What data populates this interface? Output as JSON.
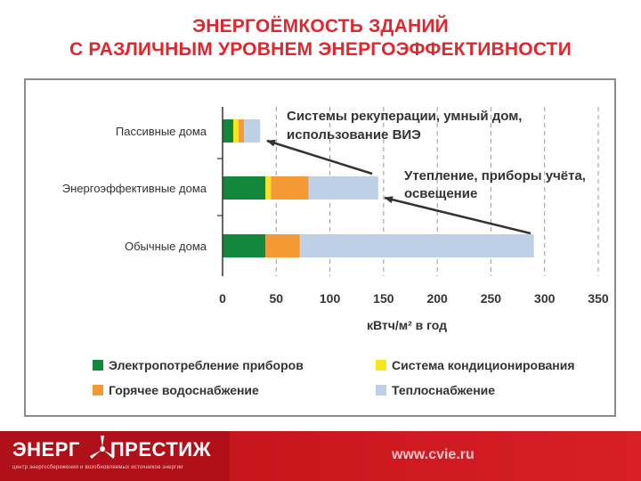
{
  "title": {
    "line1": "ЭНЕРГОЁМКОСТЬ ЗДАНИЙ",
    "line2": "С РАЗЛИЧНЫМ УРОВНЕМ ЭНЕРГОЭФФЕКТИВНОСТИ"
  },
  "chart_data": {
    "type": "bar",
    "orientation": "horizontal",
    "stacked": true,
    "categories": [
      "Пассивные дома",
      "Энергоэффективные дома",
      "Обычные дома"
    ],
    "series": [
      {
        "name": "Электропотребление приборов",
        "color": "#13873b",
        "values": [
          10,
          40,
          40
        ]
      },
      {
        "name": "Система кондиционирования",
        "color": "#f6e61a",
        "values": [
          5,
          5,
          0
        ]
      },
      {
        "name": "Горячее водоснабжение",
        "color": "#f39a35",
        "values": [
          5,
          35,
          32
        ]
      },
      {
        "name": "Теплоснабжение",
        "color": "#bed0e5",
        "values": [
          15,
          65,
          218
        ]
      }
    ],
    "xlabel": "кВтч/м² в год",
    "xlim": [
      0,
      350
    ],
    "xticks": [
      "0",
      "50",
      "100",
      "150",
      "200",
      "250",
      "300",
      "350"
    ],
    "grid": "vertical dashed",
    "legend_position": "bottom",
    "annotations": [
      {
        "text_lines": [
          "Системы рекуперации, умный дом,",
          "использование ВИЭ"
        ],
        "arrow_from": "Энергоэффективные дома",
        "arrow_to": "Пассивные дома"
      },
      {
        "text_lines": [
          "Утепление, приборы учёта,",
          "освещение"
        ],
        "arrow_from": "Обычные дома",
        "arrow_to": "Энергоэффективные дома"
      }
    ]
  },
  "footer": {
    "logo_word1": "ЭНЕРГ",
    "logo_word2": "ПРЕСТИЖ",
    "tagline": "центр энергосбережения и возобновляемых источников энергии",
    "url": "www.cvie.ru"
  }
}
